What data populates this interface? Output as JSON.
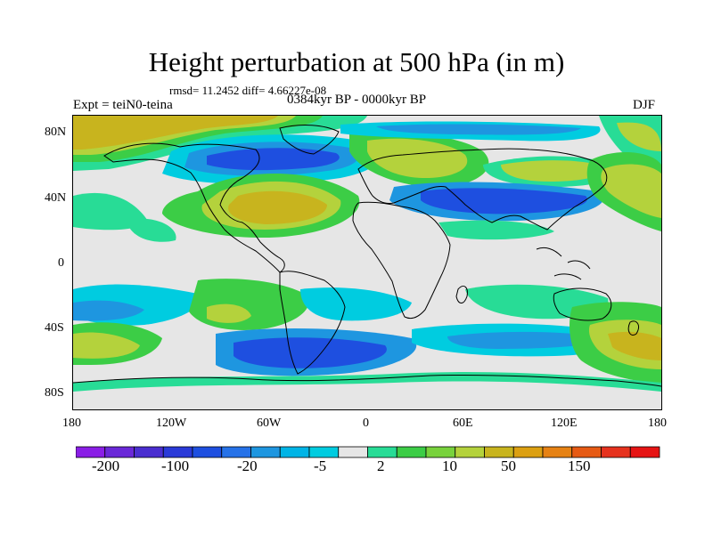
{
  "title": "Height perturbation at 500 hPa (in m)",
  "stats": "rmsd= 11.2452 diff= 4.66227e-08",
  "expt": "Expt = teiN0-teina",
  "period": "0384kyr BP - 0000kyr BP",
  "season": "DJF",
  "lat_labels": [
    "80N",
    "40N",
    "0",
    "40S",
    "80S"
  ],
  "lon_labels": [
    "180",
    "120W",
    "60W",
    "0",
    "60E",
    "120E",
    "180"
  ],
  "colorbar": {
    "colors": [
      "#8a1ee6",
      "#6a28d8",
      "#4a2ed0",
      "#2a3ad8",
      "#1e4fe0",
      "#2672e8",
      "#1e96e0",
      "#00b4e6",
      "#00cce0",
      "#e6e6e6",
      "#28dc96",
      "#3ccd46",
      "#78d23c",
      "#b4d23c",
      "#c8b41e",
      "#dca012",
      "#e68214",
      "#e65a14",
      "#e6321e",
      "#e61414"
    ],
    "labels": [
      "-200",
      "-100",
      "-20",
      "-5",
      "2",
      "10",
      "50",
      "150"
    ]
  },
  "field_colors": {
    "background": "#e6e6e6",
    "light_green": "#28dc96",
    "green": "#3ccd46",
    "lime": "#b4d23c",
    "yellow": "#c8b41e",
    "cyan": "#00cce0",
    "sky": "#1e96e0",
    "blue": "#2672e8",
    "deep_blue": "#1e4fe0",
    "coast": "#000000"
  }
}
